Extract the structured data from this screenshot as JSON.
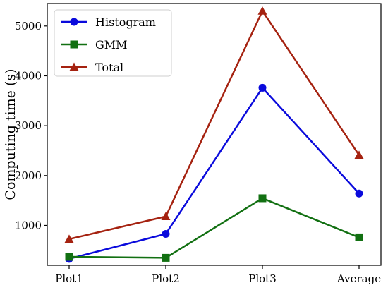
{
  "chart_data": {
    "type": "line",
    "title": "",
    "xlabel": "",
    "ylabel": "Computing time (s)",
    "categories": [
      "Plot1",
      "Plot2",
      "Plot3",
      "Average"
    ],
    "ylim": [
      200,
      5450
    ],
    "yticks": [
      1000,
      2000,
      3000,
      4000,
      5000
    ],
    "grid": false,
    "legend_position": "top-left",
    "series": [
      {
        "name": "Histogram",
        "values": [
          330,
          830,
          3760,
          1640
        ],
        "color": "#0a0adc",
        "marker": "circle"
      },
      {
        "name": "GMM",
        "values": [
          370,
          350,
          1545,
          760
        ],
        "color": "#127012",
        "marker": "square"
      },
      {
        "name": "Total",
        "values": [
          725,
          1180,
          5300,
          2410
        ],
        "color": "#a52210",
        "marker": "triangle"
      }
    ]
  }
}
